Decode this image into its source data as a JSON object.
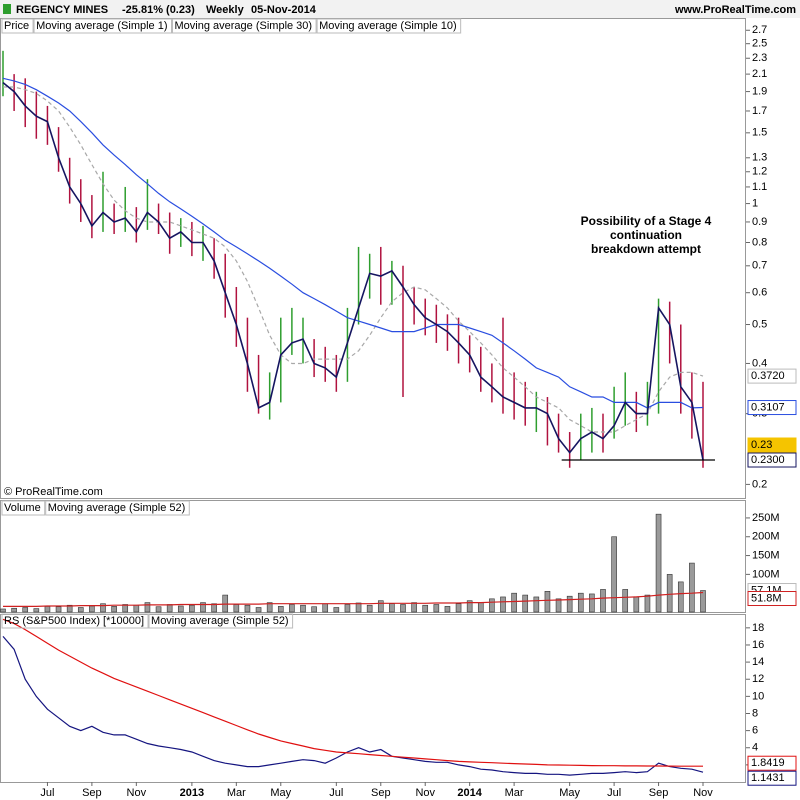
{
  "header": {
    "instrument": "REGENCY MINES",
    "change": "-25.81% (0.23)",
    "period": "Weekly",
    "date": "05-Nov-2014",
    "site": "www.ProRealTime.com",
    "copyright": "© ProRealTime.com"
  },
  "chart_data": [
    {
      "type": "ohlc",
      "legend": "Price",
      "log_scale": true,
      "ylim": [
        0.185,
        2.88
      ],
      "yticks": [
        2.7,
        2.5,
        2.3,
        2.1,
        1.9,
        1.7,
        1.5,
        1.3,
        1.2,
        1.1,
        1,
        0.9,
        0.8,
        0.7,
        0.6,
        0.5,
        0.4,
        0.3,
        0.2
      ],
      "up_color": "#2e9e2e",
      "down_color": "#b0123f",
      "high": [
        2.4,
        2.1,
        2.05,
        1.9,
        1.75,
        1.55,
        1.3,
        1.15,
        1.05,
        1.2,
        1.0,
        1.1,
        0.98,
        1.15,
        1.0,
        0.95,
        0.92,
        0.9,
        0.88,
        0.82,
        0.75,
        0.62,
        0.52,
        0.42,
        0.38,
        0.52,
        0.55,
        0.52,
        0.46,
        0.44,
        0.42,
        0.55,
        0.78,
        0.75,
        0.78,
        0.72,
        0.7,
        0.62,
        0.58,
        0.56,
        0.53,
        0.52,
        0.47,
        0.44,
        0.4,
        0.52,
        0.38,
        0.36,
        0.34,
        0.33,
        0.3,
        0.27,
        0.3,
        0.31,
        0.3,
        0.35,
        0.38,
        0.34,
        0.36,
        0.58,
        0.57,
        0.5,
        0.38,
        0.36
      ],
      "low": [
        1.85,
        1.7,
        1.55,
        1.45,
        1.4,
        1.2,
        1.0,
        0.9,
        0.82,
        0.85,
        0.84,
        0.85,
        0.8,
        0.86,
        0.84,
        0.75,
        0.78,
        0.74,
        0.72,
        0.65,
        0.52,
        0.44,
        0.34,
        0.3,
        0.29,
        0.32,
        0.42,
        0.4,
        0.37,
        0.36,
        0.34,
        0.36,
        0.5,
        0.58,
        0.56,
        0.56,
        0.33,
        0.5,
        0.47,
        0.45,
        0.43,
        0.4,
        0.38,
        0.34,
        0.32,
        0.3,
        0.29,
        0.28,
        0.27,
        0.25,
        0.24,
        0.22,
        0.23,
        0.24,
        0.24,
        0.26,
        0.28,
        0.27,
        0.28,
        0.3,
        0.4,
        0.3,
        0.26,
        0.22
      ],
      "series": [
        {
          "name": "Moving average (Simple 1)",
          "color": "#151560",
          "last_labels": [
            "0.23",
            "0.2300"
          ],
          "values": [
            2.0,
            1.9,
            1.75,
            1.65,
            1.6,
            1.3,
            1.1,
            1.0,
            0.88,
            0.95,
            0.9,
            0.92,
            0.85,
            0.95,
            0.9,
            0.82,
            0.85,
            0.8,
            0.8,
            0.72,
            0.6,
            0.5,
            0.4,
            0.31,
            0.32,
            0.42,
            0.45,
            0.46,
            0.4,
            0.39,
            0.37,
            0.45,
            0.55,
            0.67,
            0.66,
            0.68,
            0.62,
            0.56,
            0.52,
            0.5,
            0.48,
            0.45,
            0.42,
            0.37,
            0.35,
            0.33,
            0.32,
            0.31,
            0.31,
            0.3,
            0.26,
            0.24,
            0.26,
            0.27,
            0.26,
            0.28,
            0.32,
            0.3,
            0.3,
            0.55,
            0.5,
            0.35,
            0.32,
            0.23
          ]
        },
        {
          "name": "Moving average (Simple 30)",
          "color": "#2a4ee0",
          "values": [
            2.05,
            2.02,
            1.98,
            1.92,
            1.85,
            1.78,
            1.7,
            1.6,
            1.5,
            1.4,
            1.32,
            1.25,
            1.18,
            1.12,
            1.06,
            1.01,
            0.97,
            0.93,
            0.89,
            0.85,
            0.81,
            0.78,
            0.75,
            0.72,
            0.69,
            0.66,
            0.63,
            0.6,
            0.58,
            0.56,
            0.54,
            0.52,
            0.51,
            0.5,
            0.49,
            0.48,
            0.48,
            0.48,
            0.49,
            0.5,
            0.5,
            0.5,
            0.49,
            0.48,
            0.47,
            0.45,
            0.43,
            0.41,
            0.39,
            0.38,
            0.37,
            0.35,
            0.34,
            0.33,
            0.33,
            0.32,
            0.32,
            0.32,
            0.31,
            0.32,
            0.32,
            0.32,
            0.31,
            0.3107
          ]
        },
        {
          "name": "Moving average (Simple 10)",
          "color": "#a8a8a8",
          "dashed": true,
          "last_labels": [
            "0.3720"
          ],
          "values": [
            1.95,
            1.95,
            1.92,
            1.88,
            1.8,
            1.7,
            1.55,
            1.4,
            1.25,
            1.12,
            1.02,
            0.96,
            0.92,
            0.9,
            0.9,
            0.9,
            0.88,
            0.86,
            0.84,
            0.82,
            0.78,
            0.72,
            0.64,
            0.55,
            0.47,
            0.42,
            0.4,
            0.4,
            0.41,
            0.41,
            0.41,
            0.41,
            0.43,
            0.47,
            0.52,
            0.57,
            0.6,
            0.62,
            0.61,
            0.58,
            0.55,
            0.51,
            0.48,
            0.45,
            0.42,
            0.39,
            0.37,
            0.35,
            0.33,
            0.32,
            0.31,
            0.29,
            0.28,
            0.27,
            0.27,
            0.27,
            0.28,
            0.29,
            0.3,
            0.34,
            0.37,
            0.38,
            0.38,
            0.372
          ]
        }
      ],
      "support_line": 0.23,
      "annotation": [
        "Possibility of a Stage 4",
        "continuation",
        "breakdown attempt"
      ]
    },
    {
      "type": "bar",
      "legend": "Volume",
      "color": "#9a9a9a",
      "ylim": [
        0,
        295
      ],
      "yticks": [
        {
          "value": 100,
          "label": "100M"
        },
        {
          "value": 150,
          "label": "150M"
        },
        {
          "value": 200,
          "label": "200M"
        },
        {
          "value": 250,
          "label": "250M"
        }
      ],
      "values": [
        8,
        10,
        12,
        9,
        15,
        14,
        18,
        12,
        16,
        22,
        15,
        20,
        18,
        25,
        14,
        20,
        16,
        18,
        25,
        22,
        45,
        20,
        18,
        12,
        25,
        15,
        20,
        18,
        14,
        22,
        12,
        20,
        24,
        18,
        30,
        22,
        20,
        25,
        18,
        20,
        15,
        22,
        30,
        25,
        35,
        40,
        50,
        45,
        40,
        55,
        35,
        42,
        50,
        48,
        60,
        200,
        60,
        40,
        45,
        260,
        100,
        80,
        130,
        57.1
      ],
      "last_label": "57.1M",
      "series": [
        {
          "name": "Moving average (Simple 52)",
          "color": "#d02020",
          "last_label": "51.8M",
          "values": [
            15,
            15,
            15,
            15,
            16,
            16,
            16,
            17,
            17,
            17,
            18,
            18,
            18,
            19,
            19,
            19,
            20,
            20,
            20,
            20,
            21,
            21,
            21,
            21,
            22,
            22,
            22,
            22,
            22,
            22,
            22,
            22,
            22,
            22,
            23,
            23,
            23,
            23,
            23,
            24,
            24,
            24,
            25,
            25,
            26,
            27,
            28,
            29,
            30,
            31,
            32,
            33,
            34,
            35,
            37,
            38,
            39,
            40,
            42,
            45,
            47,
            49,
            50,
            51.8
          ]
        }
      ]
    },
    {
      "type": "line",
      "ylim": [
        0,
        19.5
      ],
      "yticks": [
        2,
        4,
        6,
        8,
        10,
        12,
        14,
        16,
        18
      ],
      "categories": [
        null,
        null,
        null,
        null,
        "Jul",
        null,
        null,
        null,
        "Sep",
        null,
        null,
        null,
        "Nov",
        null,
        null,
        null,
        null,
        "2013",
        null,
        null,
        null,
        "Mar",
        null,
        null,
        null,
        "May",
        null,
        null,
        null,
        null,
        "Jul",
        null,
        null,
        null,
        "Sep",
        null,
        null,
        null,
        "Nov",
        null,
        null,
        null,
        "2014",
        null,
        null,
        null,
        "Mar",
        null,
        null,
        null,
        null,
        "May",
        null,
        null,
        null,
        "Jul",
        null,
        null,
        null,
        "Sep",
        null,
        null,
        null,
        "Nov"
      ],
      "series": [
        {
          "name": "RS (S&P500 Index) [*10000]",
          "color": "#151580",
          "values": [
            17,
            15.5,
            12,
            10,
            8.5,
            7.5,
            6.5,
            6,
            6.5,
            5.8,
            5.5,
            5.5,
            5,
            4.5,
            4.2,
            4,
            3.8,
            3.5,
            3,
            2.5,
            2.2,
            2,
            1.8,
            1.8,
            2,
            2.2,
            2.4,
            2.6,
            2.5,
            2.2,
            2.8,
            3.5,
            4,
            3.5,
            3.8,
            3,
            2.8,
            2.6,
            2.4,
            2.3,
            2.3,
            2.0,
            1.8,
            1.5,
            1.4,
            1.2,
            1.1,
            1.0,
            1.0,
            0.9,
            0.9,
            0.8,
            0.9,
            1.0,
            1.0,
            1.1,
            1.2,
            1.1,
            1.2,
            2.2,
            1.8,
            1.6,
            1.5,
            1.1431
          ]
        },
        {
          "name": "Moving average (Simple 52)",
          "color": "#e01010",
          "values": [
            19,
            18.5,
            17.8,
            17,
            16.2,
            15.4,
            14.7,
            14,
            13.3,
            12.7,
            12.1,
            11.6,
            11.1,
            10.6,
            10.1,
            9.6,
            9.1,
            8.6,
            8.1,
            7.6,
            7.1,
            6.6,
            6.1,
            5.6,
            5.2,
            4.8,
            4.5,
            4.2,
            3.9,
            3.7,
            3.5,
            3.4,
            3.3,
            3.2,
            3.1,
            3.0,
            2.9,
            2.8,
            2.7,
            2.6,
            2.5,
            2.4,
            2.35,
            2.3,
            2.25,
            2.2,
            2.15,
            2.1,
            2.05,
            2.0,
            1.98,
            1.96,
            1.94,
            1.92,
            1.9,
            1.9,
            1.88,
            1.88,
            1.87,
            1.87,
            1.86,
            1.85,
            1.85,
            1.8419
          ]
        }
      ]
    }
  ]
}
